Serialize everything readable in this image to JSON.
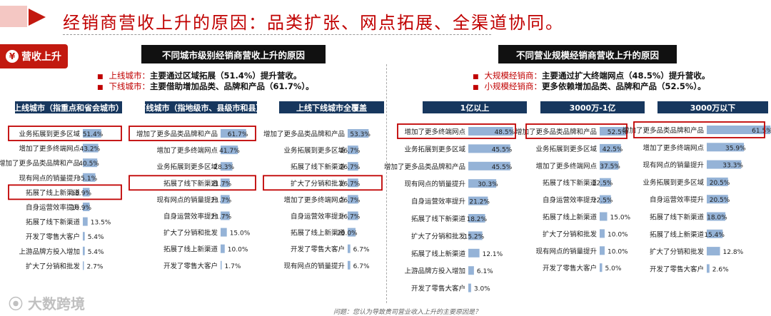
{
  "page_title": "经销商营收上升的原因：品类扩张、网点拓展、全渠道协同。",
  "tag_label": "营收上升",
  "brand": "大数跨境",
  "question": "问题：您认为导致贵司营业收入上升的主要原因是？",
  "colors": {
    "accent": "#c00000",
    "header_bg": "#17375e",
    "bar": "#95b3d7",
    "highlight_box": "#c00000"
  },
  "groups": [
    {
      "title": "不同城市级别经销商营收上升的原因",
      "notes": [
        {
          "key": "上线城市：",
          "text": "主要通过区域拓展（51.4%）提升营收。"
        },
        {
          "key": "下线城市：",
          "text": "主要借助增加品类、品牌和产品（61.7%）。"
        }
      ]
    },
    {
      "title": "不同营业规模经销商营收上升的原因",
      "notes": [
        {
          "key": "大规模经销商：",
          "text": "主要通过扩大终端网点（48.5%）提升营收。"
        },
        {
          "key": "小规模经销商：",
          "text": "更多依赖增加品类、品牌和产品（52.5%）。"
        }
      ]
    }
  ],
  "chart_data": [
    {
      "type": "bar",
      "orientation": "horizontal",
      "title": "上线城市（指重点和省会城市）",
      "categories": [
        "业务拓展到更多区域",
        "增加了更多终端网点",
        "增加了更多品类品牌和产品",
        "现有网点的销量提升",
        "拓展了线上新渠道",
        "自身运营效率提升",
        "拓展了线下新渠道",
        "开发了零售大客户",
        "上游品牌方投入增加",
        "扩大了分销和批发"
      ],
      "values": [
        51.4,
        43.2,
        40.5,
        35.1,
        18.9,
        18.9,
        13.5,
        5.4,
        5.4,
        2.7
      ],
      "labels": [
        "51.4%",
        "43.2%",
        "40.5%",
        "35.1%",
        "18.9%",
        "18.9%",
        "13.5%",
        "5.4%",
        "5.4%",
        "2.7%"
      ],
      "highlighted": [
        0,
        4
      ]
    },
    {
      "type": "bar",
      "orientation": "horizontal",
      "title": "下线城市（指地级市、县级市和县）",
      "categories": [
        "增加了更多品类品牌和产品",
        "增加了更多终端网点",
        "业务拓展到更多区域",
        "拓展了线下新渠道",
        "现有网点的销量提升",
        "自身运营效率提升",
        "扩大了分销和批发",
        "拓展了线上新渠道",
        "开发了零售大客户"
      ],
      "values": [
        61.7,
        41.7,
        28.3,
        21.7,
        21.7,
        21.7,
        15.0,
        10.0,
        1.7
      ],
      "labels": [
        "61.7%",
        "41.7%",
        "28.3%",
        "21.7%",
        "21.7%",
        "21.7%",
        "15.0%",
        "10.0%",
        "1.7%"
      ],
      "highlighted": [
        0,
        3
      ]
    },
    {
      "type": "bar",
      "orientation": "horizontal",
      "title": "上线下线城市全覆盖",
      "categories": [
        "增加了更多品类品牌和产品",
        "业务拓展到更多区域",
        "拓展了线下新渠道",
        "扩大了分销和批发",
        "增加了更多终端网点",
        "自身运营效率提升",
        "拓展了线上新渠道",
        "开发了零售大客户",
        "现有网点的销量提升"
      ],
      "values": [
        53.3,
        26.7,
        26.7,
        26.7,
        26.7,
        26.7,
        20.0,
        6.7,
        6.7
      ],
      "labels": [
        "53.3%",
        "26.7%",
        "26.7%",
        "26.7%",
        "26.7%",
        "26.7%",
        "20.0%",
        "6.7%",
        "6.7%"
      ],
      "highlighted": [
        3
      ]
    },
    {
      "type": "bar",
      "orientation": "horizontal",
      "title": "1亿以上",
      "categories": [
        "增加了更多终端网点",
        "业务拓展到更多区域",
        "增加了更多品类品牌和产品",
        "现有网点的销量提升",
        "自身运营效率提升",
        "拓展了线下新渠道",
        "扩大了分销和批发",
        "拓展了线上新渠道",
        "上游品牌方投入增加",
        "开发了零售大客户"
      ],
      "values": [
        48.5,
        45.5,
        45.5,
        30.3,
        21.2,
        18.2,
        15.2,
        12.1,
        6.1,
        3.0
      ],
      "labels": [
        "48.5%",
        "45.5%",
        "45.5%",
        "30.3%",
        "21.2%",
        "18.2%",
        "15.2%",
        "12.1%",
        "6.1%",
        "3.0%"
      ],
      "highlighted": [
        0
      ]
    },
    {
      "type": "bar",
      "orientation": "horizontal",
      "title": "3000万-1亿",
      "categories": [
        "增加了更多品类品牌和产品",
        "业务拓展到更多区域",
        "增加了更多终端网点",
        "拓展了线下新渠道",
        "自身运营效率提升",
        "拓展了线上新渠道",
        "扩大了分销和批发",
        "现有网点的销量提升",
        "开发了零售大客户"
      ],
      "values": [
        52.5,
        42.5,
        37.5,
        22.5,
        22.5,
        15.0,
        10.0,
        10.0,
        5.0
      ],
      "labels": [
        "52.5%",
        "42.5%",
        "37.5%",
        "22.5%",
        "22.5%",
        "15.0%",
        "10.0%",
        "10.0%",
        "5.0%"
      ],
      "highlighted": [
        0
      ]
    },
    {
      "type": "bar",
      "orientation": "horizontal",
      "title": "3000万以下",
      "categories": [
        "增加了更多品类品牌和产品",
        "增加了更多终端网点",
        "现有网点的销量提升",
        "业务拓展到更多区域",
        "自身运营效率提升",
        "拓展了线下新渠道",
        "拓展了线上新渠道",
        "扩大了分销和批发",
        "开发了零售大客户"
      ],
      "values": [
        61.5,
        35.9,
        33.3,
        20.5,
        20.5,
        18.0,
        15.4,
        12.8,
        2.6
      ],
      "labels": [
        "61.5%",
        "35.9%",
        "33.3%",
        "20.5%",
        "20.5%",
        "18.0%",
        "15.4%",
        "12.8%",
        "2.6%"
      ],
      "highlighted": [
        0
      ]
    }
  ]
}
